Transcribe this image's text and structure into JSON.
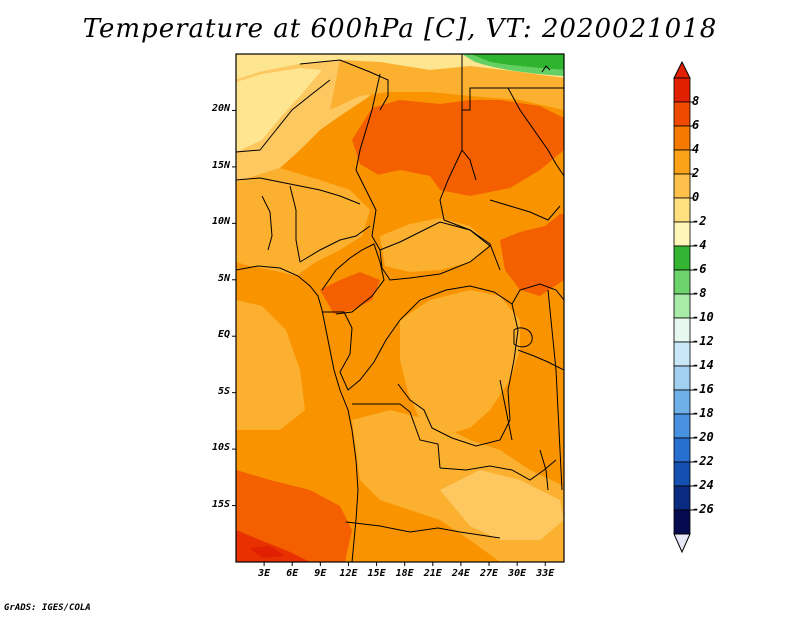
{
  "title": "Temperature at 600hPa [C], VT: 2020021018",
  "credit": "GrADS: IGES/COLA",
  "map": {
    "lat_labels": [
      "20N",
      "15N",
      "10N",
      "5N",
      "EQ",
      "5S",
      "10S",
      "15S"
    ],
    "lon_labels": [
      "3E",
      "6E",
      "9E",
      "12E",
      "15E",
      "18E",
      "21E",
      "24E",
      "27E",
      "30E",
      "33E"
    ],
    "lon_range": [
      0,
      35
    ],
    "lat_range": [
      -20,
      25
    ],
    "lon_tick_values": [
      3,
      6,
      9,
      12,
      15,
      18,
      21,
      24,
      27,
      30,
      33
    ],
    "lat_tick_values": [
      20,
      15,
      10,
      5,
      0,
      -5,
      -10,
      -15
    ]
  },
  "colorbar": {
    "labels": [
      "8",
      "6",
      "4",
      "2",
      "0",
      "-2",
      "-4",
      "-6",
      "-8",
      "-10",
      "-12",
      "-14",
      "-16",
      "-18",
      "-20",
      "-22",
      "-24",
      "-26"
    ],
    "colors": [
      "#e02000",
      "#f04a00",
      "#f57a00",
      "#fba218",
      "#fdc04a",
      "#fee080",
      "#fff6b8",
      "#33b533",
      "#6dd46d",
      "#a8eaa8",
      "#e6f8f0",
      "#c8e8f8",
      "#a2d0f0",
      "#70b0e8",
      "#4890e0",
      "#2870d0",
      "#1450b0",
      "#0a2a80",
      "#060a50"
    ],
    "top_color": "#e02000",
    "bottom_color": "#e8e8f8"
  },
  "legend_colors": {
    "deep_red": "#e83000",
    "red_orange": "#f45f00",
    "orange": "#f99400",
    "light_orange": "#fbb030",
    "pale_orange": "#fdc860",
    "pale_yellow": "#fee590",
    "green": "#2fb42f",
    "light_green": "#63d063"
  }
}
